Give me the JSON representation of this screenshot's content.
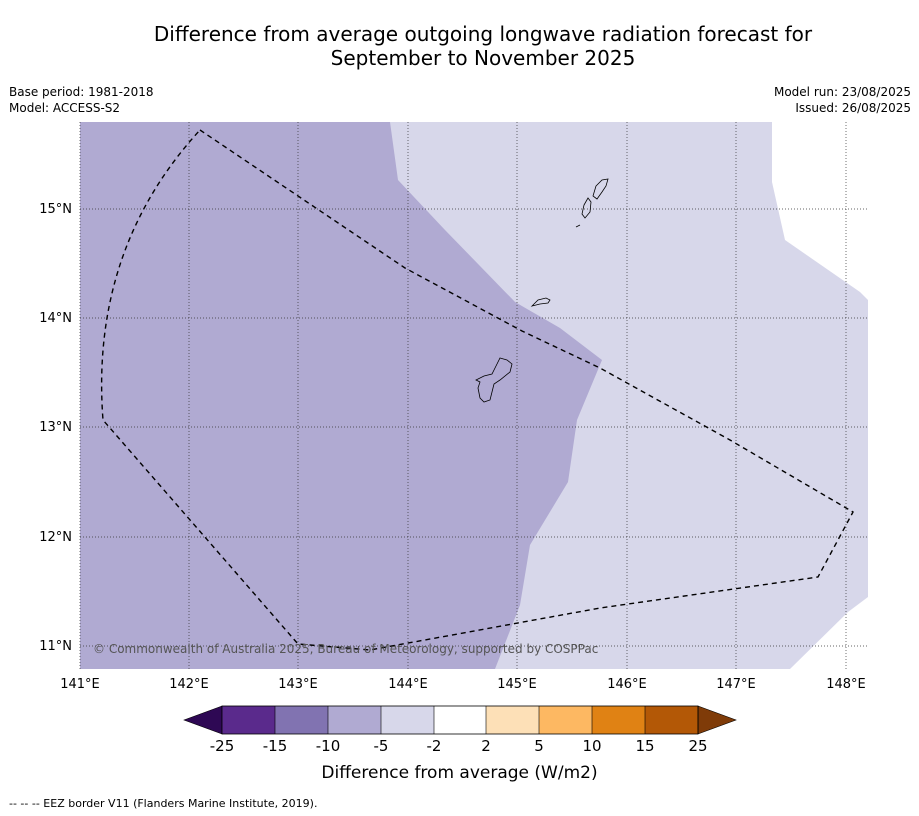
{
  "title_line1": "Difference from average outgoing longwave radiation forecast for",
  "title_line2": "September to November 2025",
  "base_period": "Base period: 1981-2018",
  "model": "Model: ACCESS-S2",
  "model_run": "Model run: 23/08/2025",
  "issued": "Issued: 26/08/2025",
  "copyright": "© Commonwealth of Australia 2025, Bureau of Meteorology, supported by COSPPac",
  "footnote": "--  --  -- EEZ border V11 (Flanders Marine Institute, 2019).",
  "colorbar": {
    "label": "Difference from average (W/m2)",
    "ticks": [
      "-25",
      "-15",
      "-10",
      "-5",
      "-2",
      "2",
      "5",
      "10",
      "15",
      "25"
    ],
    "colors": [
      "#2e0854",
      "#5a2a8c",
      "#8173b1",
      "#b0aad2",
      "#d7d7ea",
      "#ffffff",
      "#fde0b7",
      "#fdb862",
      "#e08214",
      "#b35806",
      "#7f3b08"
    ]
  },
  "map": {
    "lon_labels": [
      "141°E",
      "142°E",
      "143°E",
      "144°E",
      "145°E",
      "146°E",
      "147°E",
      "148°E"
    ],
    "lat_labels": [
      "15°N",
      "14°N",
      "13°N",
      "12°N",
      "11°N"
    ],
    "lon_range": [
      141,
      148.2
    ],
    "lat_range": [
      10.8,
      15.8
    ],
    "fill_colors": {
      "band_-10_-5": "#b0aad2",
      "band_-5_-2": "#d7d7ea"
    }
  }
}
